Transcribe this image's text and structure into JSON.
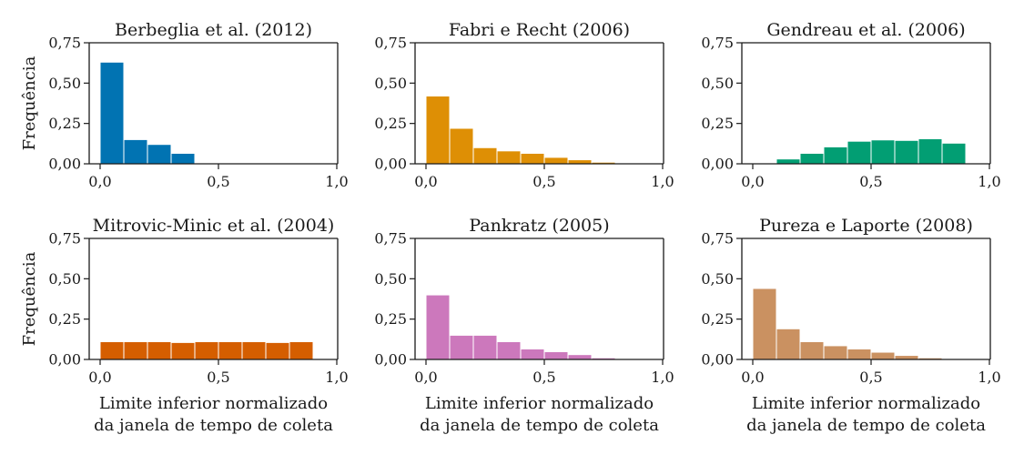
{
  "chart_data": [
    {
      "type": "bar",
      "title": "Berbeglia et al. (2012)",
      "ylabel": "Frequência",
      "xlabel": "",
      "xlim": [
        0,
        1
      ],
      "ylim": [
        0,
        0.75
      ],
      "color": "#0173b2",
      "bin_edges": [
        0.0,
        0.1,
        0.2,
        0.3,
        0.4,
        0.5,
        0.6,
        0.7,
        0.8,
        0.9
      ],
      "values": [
        0.63,
        0.15,
        0.12,
        0.065,
        0,
        0,
        0,
        0,
        0
      ],
      "xticks": [
        "0,0",
        "0,5",
        "1,0"
      ],
      "yticks": [
        "0,00",
        "0,25",
        "0,50",
        "0,75"
      ]
    },
    {
      "type": "bar",
      "title": "Fabri e Recht (2006)",
      "ylabel": "",
      "xlabel": "",
      "xlim": [
        0,
        1
      ],
      "ylim": [
        0,
        0.75
      ],
      "color": "#de8f05",
      "bin_edges": [
        0.0,
        0.1,
        0.2,
        0.3,
        0.4,
        0.5,
        0.6,
        0.7,
        0.8,
        0.9
      ],
      "values": [
        0.42,
        0.22,
        0.1,
        0.08,
        0.065,
        0.04,
        0.025,
        0.01,
        0
      ],
      "xticks": [
        "0,0",
        "0,5",
        "1,0"
      ],
      "yticks": [
        "0,00",
        "0,25",
        "0,50",
        "0,75"
      ]
    },
    {
      "type": "bar",
      "title": "Gendreau et al. (2006)",
      "ylabel": "",
      "xlabel": "",
      "xlim": [
        0,
        1
      ],
      "ylim": [
        0,
        0.75
      ],
      "color": "#029e73",
      "bin_edges": [
        0.0,
        0.1,
        0.2,
        0.3,
        0.4,
        0.5,
        0.6,
        0.7,
        0.8,
        0.9
      ],
      "values": [
        0,
        0.03,
        0.065,
        0.105,
        0.14,
        0.148,
        0.145,
        0.155,
        0.128
      ],
      "xticks": [
        "0,0",
        "0,5",
        "1,0"
      ],
      "yticks": [
        "0,00",
        "0,25",
        "0,50",
        "0,75"
      ]
    },
    {
      "type": "bar",
      "title": "Mitrovic-Minic et al. (2004)",
      "ylabel": "Frequência",
      "xlabel": "Limite inferior normalizado\nda janela de tempo de coleta",
      "xlim": [
        0,
        1
      ],
      "ylim": [
        0,
        0.75
      ],
      "color": "#d55e00",
      "bin_edges": [
        0.0,
        0.1,
        0.2,
        0.3,
        0.4,
        0.5,
        0.6,
        0.7,
        0.8,
        0.9
      ],
      "values": [
        0.11,
        0.11,
        0.11,
        0.105,
        0.11,
        0.11,
        0.11,
        0.105,
        0.11
      ],
      "xticks": [
        "0,0",
        "0,5",
        "1,0"
      ],
      "yticks": [
        "0,00",
        "0,25",
        "0,50",
        "0,75"
      ]
    },
    {
      "type": "bar",
      "title": "Pankratz (2005)",
      "ylabel": "",
      "xlabel": "Limite inferior normalizado\nda janela de tempo de coleta",
      "xlim": [
        0,
        1
      ],
      "ylim": [
        0,
        0.75
      ],
      "color": "#cc78bc",
      "bin_edges": [
        0.0,
        0.1,
        0.2,
        0.3,
        0.4,
        0.5,
        0.6,
        0.7,
        0.8,
        0.9
      ],
      "values": [
        0.4,
        0.15,
        0.15,
        0.11,
        0.065,
        0.048,
        0.03,
        0.01,
        0
      ],
      "xticks": [
        "0,0",
        "0,5",
        "1,0"
      ],
      "yticks": [
        "0,00",
        "0,25",
        "0,50",
        "0,75"
      ]
    },
    {
      "type": "bar",
      "title": "Pureza e Laporte (2008)",
      "ylabel": "",
      "xlabel": "Limite inferior normalizado\nda janela de tempo de coleta",
      "xlim": [
        0,
        1
      ],
      "ylim": [
        0,
        0.75
      ],
      "color": "#ca9161",
      "bin_edges": [
        0.0,
        0.1,
        0.2,
        0.3,
        0.4,
        0.5,
        0.6,
        0.7,
        0.8,
        0.9
      ],
      "values": [
        0.44,
        0.19,
        0.11,
        0.085,
        0.065,
        0.045,
        0.025,
        0.01,
        0
      ],
      "xticks": [
        "0,0",
        "0,5",
        "1,0"
      ],
      "yticks": [
        "0,00",
        "0,25",
        "0,50",
        "0,75"
      ]
    }
  ]
}
